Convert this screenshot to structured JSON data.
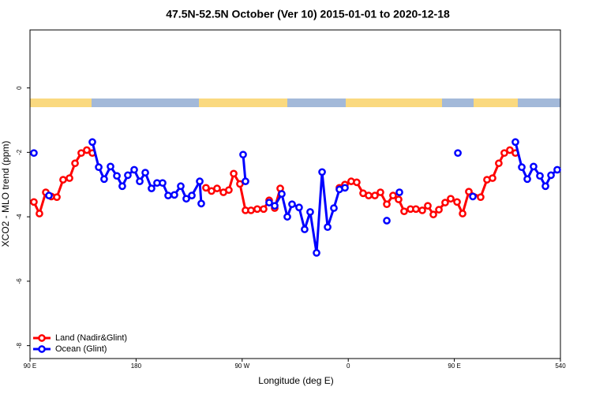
{
  "chart_data": {
    "type": "line",
    "title": "47.5N-52.5N October (Ver 10)   2015-01-01 to 2020-12-18",
    "x_label": "Longitude (deg E)",
    "y_label": "XCO2 - MLO trend (ppm)",
    "xlim": [
      90,
      540
    ],
    "ylim": [
      -8.4,
      1.8
    ],
    "xticks": [
      {
        "value": 90,
        "label": "90 E"
      },
      180,
      {
        "value": 270,
        "label": "90 W"
      },
      {
        "value": 360,
        "label": "0"
      },
      {
        "value": 450,
        "label": "90 E"
      },
      540
    ],
    "yticks": [
      0,
      -2,
      -4,
      -6,
      -8
    ],
    "legend": "bottom-left",
    "series": [
      {
        "name": "Land (Nadir&Glint)",
        "color": "#ff0000",
        "x": [
          93.3,
          98.0,
          103.4,
          108.1,
          112.8,
          118.1,
          123.5,
          128.2,
          133.5,
          138.2,
          142.9,
          null,
          239.3,
          244.0,
          248.7,
          254.1,
          258.7,
          262.8,
          268.1,
          272.8,
          277.5,
          282.8,
          288.2,
          292.9,
          297.6,
          302.3,
          null,
          352.5,
          357.2,
          362.5,
          367.2,
          372.6,
          377.3,
          382.6,
          387.3,
          392.7,
          398.0,
          402.7,
          407.4,
          412.8,
          417.4,
          422.8,
          427.5,
          432.2,
          436.9,
          442.2,
          446.9,
          452.3,
          457.0,
          462.3,
          472.3,
          477.7,
          482.4,
          487.7,
          492.4,
          497.1,
          501.8
        ],
        "values": [
          -3.54,
          -3.9,
          -3.24,
          -3.37,
          -3.39,
          -2.85,
          -2.8,
          -2.34,
          -2.02,
          -1.93,
          -2.02,
          null,
          -3.1,
          -3.2,
          -3.12,
          -3.24,
          -3.17,
          -2.66,
          -2.98,
          -3.8,
          -3.8,
          -3.76,
          -3.76,
          -3.49,
          -3.73,
          -3.12,
          null,
          -3.1,
          -3.0,
          -2.9,
          -2.93,
          -3.27,
          -3.34,
          -3.34,
          -3.24,
          -3.61,
          -3.34,
          -3.46,
          -3.83,
          -3.76,
          -3.76,
          -3.8,
          -3.66,
          -3.93,
          -3.78,
          -3.56,
          -3.44,
          -3.54,
          -3.9,
          -3.22,
          -3.39,
          -2.85,
          -2.8,
          -2.34,
          -2.02,
          -1.93,
          -2.02
        ]
      },
      {
        "name": "Ocean (Glint)",
        "color": "#0000ff",
        "x": [
          93.3,
          null,
          106.1,
          null,
          142.9,
          148.3,
          152.9,
          158.3,
          163.7,
          168.3,
          173.0,
          178.4,
          183.1,
          187.8,
          193.1,
          197.8,
          202.5,
          207.2,
          212.5,
          217.9,
          222.6,
          227.3,
          234.0,
          235.3,
          null,
          270.8,
          272.8,
          null,
          292.9,
          297.6,
          303.6,
          308.3,
          312.3,
          318.3,
          323.0,
          327.7,
          333.1,
          337.8,
          342.5,
          347.8,
          352.5,
          357.2,
          null,
          392.7,
          null,
          403.4,
          null,
          453.0,
          null,
          465.7,
          null,
          501.8,
          507.2,
          511.9,
          517.2,
          522.6,
          527.3,
          532.0,
          537.3
        ],
        "values": [
          -2.02,
          null,
          -3.34,
          null,
          -1.68,
          -2.46,
          -2.83,
          -2.44,
          -2.73,
          -3.05,
          -2.71,
          -2.54,
          -2.9,
          -2.63,
          -3.12,
          -2.95,
          -2.95,
          -3.34,
          -3.32,
          -3.05,
          -3.44,
          -3.34,
          -2.9,
          -3.59,
          null,
          -2.07,
          -2.9,
          null,
          -3.56,
          -3.66,
          -3.29,
          -4.0,
          -3.61,
          -3.71,
          -4.39,
          -3.85,
          -5.12,
          -2.61,
          -4.32,
          -3.73,
          -3.15,
          -3.1,
          null,
          -4.12,
          null,
          -3.24,
          null,
          -2.02,
          null,
          -3.37,
          null,
          -1.68,
          -2.46,
          -2.83,
          -2.44,
          -2.73,
          -3.05,
          -2.71,
          -2.54
        ]
      }
    ]
  }
}
